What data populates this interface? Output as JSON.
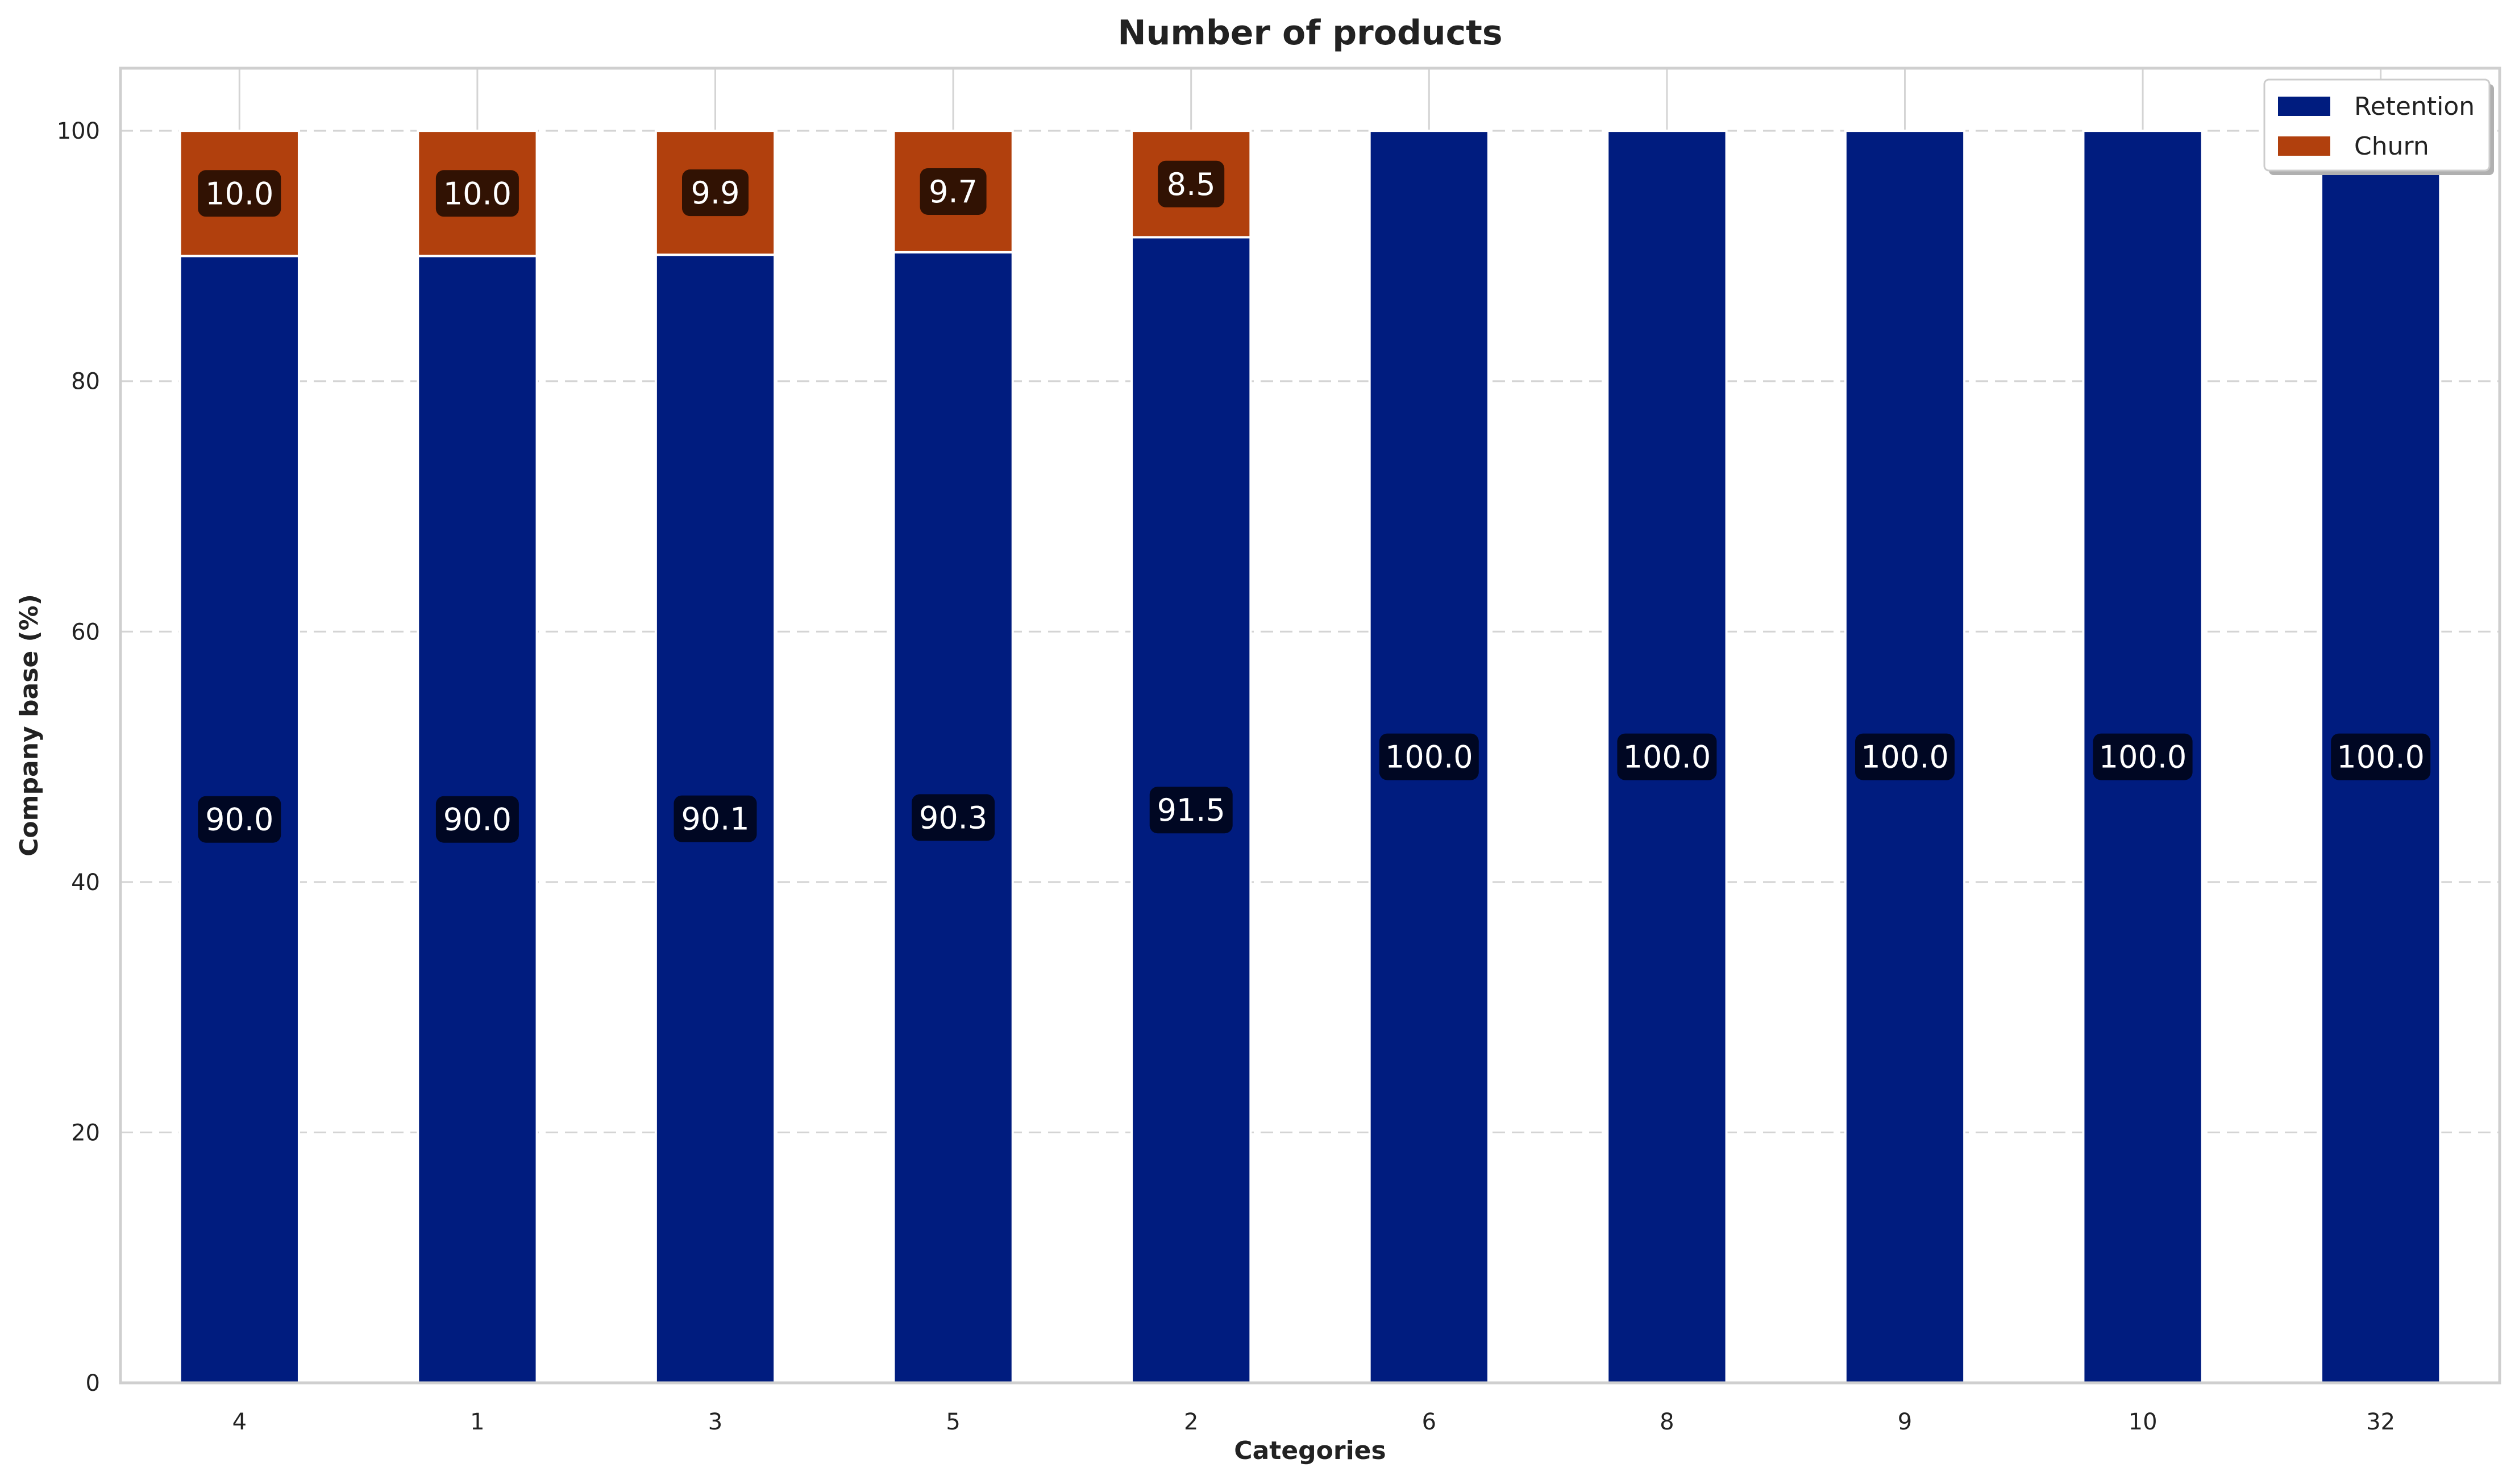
{
  "chart_data": {
    "type": "bar",
    "stacked": true,
    "title": "Number of products",
    "xlabel": "Categories",
    "ylabel": "Company base (%)",
    "categories": [
      "4",
      "1",
      "3",
      "5",
      "2",
      "6",
      "8",
      "9",
      "10",
      "32"
    ],
    "series": [
      {
        "name": "Retention",
        "color": "#001c7f",
        "values": [
          90.0,
          90.0,
          90.1,
          90.3,
          91.5,
          100.0,
          100.0,
          100.0,
          100.0,
          100.0
        ],
        "labels": [
          "90.0",
          "90.0",
          "90.1",
          "90.3",
          "91.5",
          "100.0",
          "100.0",
          "100.0",
          "100.0",
          "100.0"
        ]
      },
      {
        "name": "Churn",
        "color": "#b1400d",
        "values": [
          10.0,
          10.0,
          9.9,
          9.7,
          8.5,
          0,
          0,
          0,
          0,
          0
        ],
        "labels": [
          "10.0",
          "10.0",
          "9.9",
          "9.7",
          "8.5",
          "",
          "",
          "",
          "",
          ""
        ]
      }
    ],
    "ylim": [
      0,
      105
    ],
    "yticks": [
      "0",
      "20",
      "40",
      "60",
      "80",
      "100"
    ],
    "grid": "y-dashed",
    "legend_position": "top-right"
  }
}
